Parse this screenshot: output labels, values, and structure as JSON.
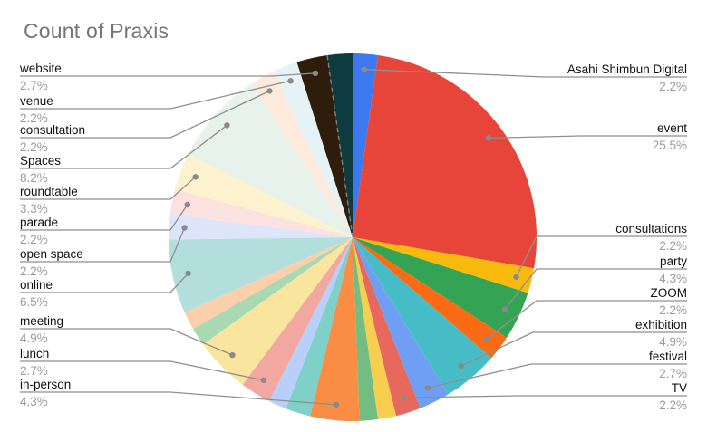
{
  "title": "Count of Praxis",
  "chart_data": {
    "type": "pie",
    "title": "Count of Praxis",
    "value_format": "percent",
    "start_angle_deg": 0,
    "direction": "clockwise",
    "legend_position": "labeled-callouts",
    "slices": [
      {
        "label": "Asahi Shimbun Digital",
        "pct": 2.2,
        "color": "#3C79EE"
      },
      {
        "label": "event",
        "pct": 25.5,
        "color": "#E8453A"
      },
      {
        "label": "consultations",
        "pct": 2.2,
        "color": "#F8BB0D"
      },
      {
        "label": "party",
        "pct": 4.3,
        "color": "#34A353"
      },
      {
        "label": "ZOOM",
        "pct": 2.2,
        "color": "#FB6A14"
      },
      {
        "label": "exhibition",
        "pct": 4.9,
        "color": "#46BDC6"
      },
      {
        "label": "festival",
        "pct": 2.7,
        "color": "#6F9FF3"
      },
      {
        "label": "TV",
        "pct": 2.2,
        "color": "#E7695D"
      },
      {
        "label": "",
        "pct": 1.6,
        "color": "#F6CF50"
      },
      {
        "label": "",
        "pct": 1.6,
        "color": "#72BE82"
      },
      {
        "label": "in-person",
        "pct": 4.3,
        "color": "#F88D43"
      },
      {
        "label": "",
        "pct": 2.2,
        "color": "#7ED0C8"
      },
      {
        "label": "",
        "pct": 1.6,
        "color": "#B7CFF9"
      },
      {
        "label": "lunch",
        "pct": 2.7,
        "color": "#F2A8A1"
      },
      {
        "label": "meeting",
        "pct": 4.9,
        "color": "#FAE59E"
      },
      {
        "label": "",
        "pct": 1.6,
        "color": "#A9D9B3"
      },
      {
        "label": "",
        "pct": 1.6,
        "color": "#FACFA9"
      },
      {
        "label": "online",
        "pct": 6.5,
        "color": "#B2DFDC"
      },
      {
        "label": "open space",
        "pct": 2.2,
        "color": "#DCE5FA"
      },
      {
        "label": "parade",
        "pct": 2.2,
        "color": "#FBE2E1"
      },
      {
        "label": "roundtable",
        "pct": 3.3,
        "color": "#FCF3CE"
      },
      {
        "label": "Spaces",
        "pct": 8.2,
        "color": "#E7F3EA"
      },
      {
        "label": "consultation",
        "pct": 2.2,
        "color": "#FCEBDC"
      },
      {
        "label": "venue",
        "pct": 2.2,
        "color": "#E5F3F6"
      },
      {
        "label": "website",
        "pct": 2.7,
        "color": "#2E1D0A"
      },
      {
        "label": "",
        "pct": 2.2,
        "color": "#0D3B40"
      }
    ]
  },
  "style": {
    "title_color": "#757575",
    "label_color": "#111111",
    "percent_color": "#9b9b9b",
    "leader_line_color": "#8f8f8f",
    "background": "#ffffff"
  }
}
